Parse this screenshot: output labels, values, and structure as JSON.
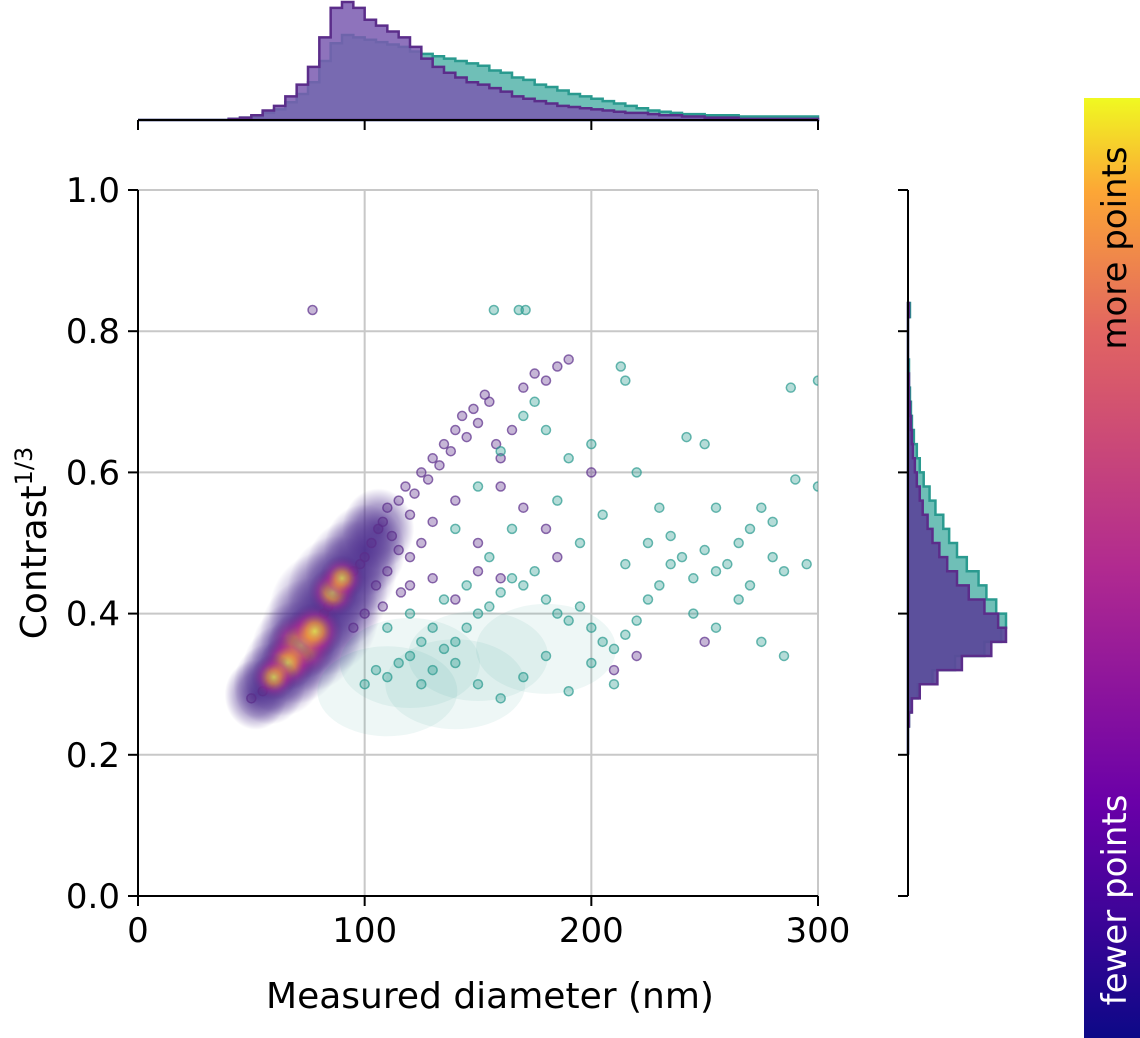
{
  "chart_data": {
    "type": "scatter",
    "xlabel": "Measured diameter (nm)",
    "ylabel_base": "Contrast",
    "ylabel_superscript": "1/3",
    "xlim": [
      0,
      300
    ],
    "ylim": [
      0,
      1
    ],
    "xticks": [
      {
        "value": 0,
        "label": "0"
      },
      {
        "value": 100,
        "label": "100"
      },
      {
        "value": 200,
        "label": "200"
      },
      {
        "value": 300,
        "label": "300"
      }
    ],
    "yticks": [
      {
        "value": 0.0,
        "label": "0.0"
      },
      {
        "value": 0.2,
        "label": "0.2"
      },
      {
        "value": 0.4,
        "label": "0.4"
      },
      {
        "value": 0.6,
        "label": "0.6"
      },
      {
        "value": 0.8,
        "label": "0.8"
      },
      {
        "value": 1.0,
        "label": "1.0"
      }
    ],
    "grid": true,
    "colors": {
      "group_a": "#5b2d8a",
      "group_b": "#2a9a8f",
      "hist_a_fill": "#7a5bb0",
      "hist_b_fill": "#6fbfb7"
    },
    "series": [
      {
        "key": "group_a",
        "points": [
          [
            50,
            0.28
          ],
          [
            55,
            0.29
          ],
          [
            58,
            0.3
          ],
          [
            60,
            0.32
          ],
          [
            62,
            0.31
          ],
          [
            65,
            0.33
          ],
          [
            67,
            0.34
          ],
          [
            70,
            0.35
          ],
          [
            72,
            0.36
          ],
          [
            74,
            0.34
          ],
          [
            76,
            0.37
          ],
          [
            78,
            0.38
          ],
          [
            80,
            0.37
          ],
          [
            82,
            0.4
          ],
          [
            84,
            0.41
          ],
          [
            86,
            0.42
          ],
          [
            88,
            0.43
          ],
          [
            90,
            0.44
          ],
          [
            92,
            0.45
          ],
          [
            95,
            0.46
          ],
          [
            98,
            0.47
          ],
          [
            100,
            0.48
          ],
          [
            103,
            0.5
          ],
          [
            106,
            0.52
          ],
          [
            108,
            0.53
          ],
          [
            110,
            0.55
          ],
          [
            112,
            0.51
          ],
          [
            115,
            0.56
          ],
          [
            118,
            0.58
          ],
          [
            120,
            0.54
          ],
          [
            122,
            0.57
          ],
          [
            125,
            0.6
          ],
          [
            128,
            0.59
          ],
          [
            130,
            0.62
          ],
          [
            133,
            0.61
          ],
          [
            135,
            0.64
          ],
          [
            138,
            0.63
          ],
          [
            140,
            0.66
          ],
          [
            143,
            0.68
          ],
          [
            145,
            0.65
          ],
          [
            148,
            0.69
          ],
          [
            150,
            0.67
          ],
          [
            153,
            0.71
          ],
          [
            155,
            0.7
          ],
          [
            158,
            0.64
          ],
          [
            160,
            0.62
          ],
          [
            165,
            0.66
          ],
          [
            170,
            0.72
          ],
          [
            175,
            0.74
          ],
          [
            180,
            0.73
          ],
          [
            185,
            0.75
          ],
          [
            190,
            0.76
          ],
          [
            100,
            0.4
          ],
          [
            105,
            0.44
          ],
          [
            110,
            0.46
          ],
          [
            115,
            0.49
          ],
          [
            120,
            0.48
          ],
          [
            125,
            0.5
          ],
          [
            130,
            0.53
          ],
          [
            140,
            0.56
          ],
          [
            150,
            0.5
          ],
          [
            160,
            0.58
          ],
          [
            170,
            0.55
          ],
          [
            180,
            0.52
          ],
          [
            200,
            0.6
          ],
          [
            210,
            0.32
          ],
          [
            220,
            0.34
          ],
          [
            250,
            0.36
          ],
          [
            77,
            0.83
          ],
          [
            95,
            0.38
          ],
          [
            130,
            0.45
          ],
          [
            140,
            0.42
          ],
          [
            150,
            0.46
          ],
          [
            160,
            0.45
          ],
          [
            185,
            0.48
          ],
          [
            120,
            0.44
          ],
          [
            108,
            0.41
          ],
          [
            116,
            0.43
          ]
        ]
      },
      {
        "key": "group_b",
        "points": [
          [
            100,
            0.3
          ],
          [
            105,
            0.32
          ],
          [
            110,
            0.31
          ],
          [
            115,
            0.33
          ],
          [
            120,
            0.34
          ],
          [
            125,
            0.3
          ],
          [
            130,
            0.32
          ],
          [
            135,
            0.35
          ],
          [
            140,
            0.36
          ],
          [
            145,
            0.38
          ],
          [
            150,
            0.4
          ],
          [
            155,
            0.41
          ],
          [
            160,
            0.43
          ],
          [
            165,
            0.45
          ],
          [
            170,
            0.44
          ],
          [
            175,
            0.46
          ],
          [
            180,
            0.42
          ],
          [
            185,
            0.4
          ],
          [
            190,
            0.39
          ],
          [
            195,
            0.41
          ],
          [
            200,
            0.38
          ],
          [
            205,
            0.36
          ],
          [
            210,
            0.35
          ],
          [
            215,
            0.37
          ],
          [
            220,
            0.39
          ],
          [
            225,
            0.42
          ],
          [
            230,
            0.44
          ],
          [
            235,
            0.47
          ],
          [
            240,
            0.48
          ],
          [
            245,
            0.45
          ],
          [
            250,
            0.49
          ],
          [
            255,
            0.46
          ],
          [
            260,
            0.47
          ],
          [
            265,
            0.5
          ],
          [
            270,
            0.52
          ],
          [
            275,
            0.55
          ],
          [
            280,
            0.48
          ],
          [
            285,
            0.46
          ],
          [
            290,
            0.59
          ],
          [
            295,
            0.47
          ],
          [
            300,
            0.58
          ],
          [
            300,
            0.73
          ],
          [
            288,
            0.72
          ],
          [
            157,
            0.83
          ],
          [
            168,
            0.83
          ],
          [
            171,
            0.83
          ],
          [
            213,
            0.75
          ],
          [
            215,
            0.73
          ],
          [
            242,
            0.65
          ],
          [
            250,
            0.64
          ],
          [
            180,
            0.66
          ],
          [
            190,
            0.62
          ],
          [
            200,
            0.64
          ],
          [
            220,
            0.6
          ],
          [
            230,
            0.55
          ],
          [
            245,
            0.4
          ],
          [
            255,
            0.38
          ],
          [
            265,
            0.42
          ],
          [
            275,
            0.36
          ],
          [
            285,
            0.34
          ],
          [
            120,
            0.4
          ],
          [
            130,
            0.38
          ],
          [
            140,
            0.33
          ],
          [
            150,
            0.3
          ],
          [
            160,
            0.28
          ],
          [
            170,
            0.31
          ],
          [
            180,
            0.34
          ],
          [
            190,
            0.29
          ],
          [
            200,
            0.33
          ],
          [
            210,
            0.3
          ],
          [
            140,
            0.52
          ],
          [
            150,
            0.58
          ],
          [
            160,
            0.63
          ],
          [
            170,
            0.68
          ],
          [
            175,
            0.7
          ],
          [
            110,
            0.38
          ],
          [
            125,
            0.36
          ],
          [
            135,
            0.42
          ],
          [
            145,
            0.44
          ],
          [
            155,
            0.48
          ],
          [
            165,
            0.52
          ],
          [
            185,
            0.56
          ],
          [
            195,
            0.5
          ],
          [
            205,
            0.54
          ],
          [
            215,
            0.47
          ],
          [
            225,
            0.5
          ],
          [
            235,
            0.51
          ],
          [
            255,
            0.55
          ],
          [
            270,
            0.44
          ],
          [
            280,
            0.53
          ]
        ]
      }
    ],
    "density": {
      "colormap": "plasma",
      "hotspots": [
        {
          "x": 72,
          "y": 0.355,
          "level": 1.0
        },
        {
          "x": 78,
          "y": 0.375,
          "level": 0.75
        },
        {
          "x": 66,
          "y": 0.33,
          "level": 0.7
        },
        {
          "x": 86,
          "y": 0.43,
          "level": 0.6
        },
        {
          "x": 90,
          "y": 0.45,
          "level": 0.5
        },
        {
          "x": 60,
          "y": 0.31,
          "level": 0.5
        }
      ]
    },
    "marginal_x": {
      "bin_edges_start": 0,
      "bin_width": 5,
      "max_count": 100,
      "group_a": [
        0,
        0,
        0,
        0,
        0,
        0,
        0,
        0,
        1,
        2,
        4,
        8,
        12,
        20,
        30,
        45,
        70,
        95,
        100,
        95,
        85,
        80,
        75,
        70,
        62,
        52,
        45,
        40,
        36,
        32,
        30,
        27,
        24,
        20,
        18,
        16,
        14,
        12,
        11,
        10,
        9,
        8,
        7,
        6,
        6,
        5,
        4,
        4,
        3,
        3,
        2,
        2,
        2,
        1,
        1,
        1,
        1,
        1,
        1,
        1
      ],
      "group_b": [
        0,
        0,
        0,
        0,
        0,
        0,
        0,
        0,
        1,
        2,
        3,
        6,
        9,
        15,
        22,
        32,
        50,
        65,
        72,
        70,
        68,
        66,
        64,
        62,
        58,
        56,
        54,
        52,
        50,
        48,
        46,
        42,
        40,
        36,
        34,
        30,
        28,
        25,
        22,
        20,
        18,
        16,
        14,
        12,
        10,
        8,
        7,
        6,
        5,
        5,
        4,
        4,
        4,
        3,
        3,
        3,
        3,
        3,
        3,
        3
      ]
    },
    "marginal_y": {
      "bin_edges_start": 0.2,
      "bin_width": 0.02,
      "max_count": 100,
      "group_a": [
        0,
        0,
        1,
        4,
        12,
        30,
        55,
        85,
        100,
        92,
        78,
        62,
        50,
        40,
        32,
        25,
        20,
        15,
        12,
        9,
        7,
        5,
        4,
        3,
        2,
        1,
        1,
        0,
        0,
        0,
        0,
        1
      ],
      "group_b": [
        0,
        0,
        1,
        3,
        10,
        25,
        48,
        78,
        95,
        100,
        90,
        80,
        72,
        60,
        50,
        42,
        36,
        28,
        22,
        16,
        12,
        9,
        6,
        4,
        3,
        2,
        1,
        1,
        0,
        0,
        0,
        2
      ]
    },
    "colorbar": {
      "colormap": "plasma",
      "top_label": "more points",
      "bottom_label": "fewer points"
    }
  }
}
